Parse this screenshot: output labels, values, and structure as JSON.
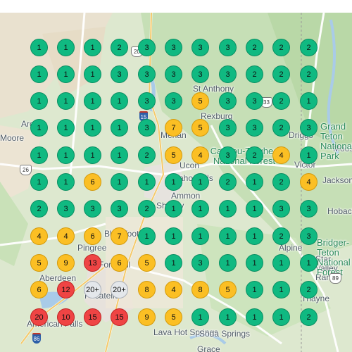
{
  "map": {
    "colors": {
      "green": "#10b981",
      "yellow": "#fbbf24",
      "red": "#ef4444",
      "gray": "#e4e7eb"
    },
    "place_labels": [
      "St Anthony",
      "Rexburg",
      "Menan",
      "Ucon",
      "Ammon",
      "Shelley",
      "Blackfoot",
      "Pingree",
      "Aberdeen",
      "American Falls",
      "Pocatello",
      "Lava Hot Springs",
      "Soda Springs",
      "Grace",
      "Driggs",
      "Victor",
      "Jackson",
      "Alpine",
      "Star Valley Ranch",
      "Thayne",
      "Moose",
      "Hoback",
      "Fort Hall",
      "Idaho Falls",
      "Arco",
      "Moore"
    ],
    "area_labels": [
      "Caribou-Targhee National Forest",
      "Grand Teton National Park",
      "Bridger-Teton National Forest"
    ],
    "route_shields": [
      "15",
      "26",
      "86",
      "20",
      "33",
      "89"
    ],
    "clusters": [
      [
        "1",
        "1",
        "1",
        "2",
        "3",
        "3",
        "3",
        "3",
        "2",
        "2",
        "2"
      ],
      [
        "1",
        "1",
        "1",
        "3",
        "3",
        "3",
        "3",
        "3",
        "2",
        "2",
        "2"
      ],
      [
        "1",
        "1",
        "1",
        "1",
        "3",
        "3",
        "5",
        "3",
        "3",
        "2",
        "1"
      ],
      [
        "1",
        "1",
        "1",
        "1",
        "3",
        "7",
        "5",
        "3",
        "3",
        "2",
        "3"
      ],
      [
        "1",
        "1",
        "1",
        "1",
        "2",
        "5",
        "4",
        "3",
        "2",
        "4",
        "1"
      ],
      [
        "1",
        "1",
        "6",
        "1",
        "1",
        "1",
        "1",
        "2",
        "1",
        "2",
        "4"
      ],
      [
        "2",
        "3",
        "3",
        "3",
        "2",
        "1",
        "1",
        "1",
        "1",
        "3",
        "3"
      ],
      [
        "4",
        "4",
        "6",
        "7",
        "1",
        "1",
        "1",
        "1",
        "1",
        "2",
        "3"
      ],
      [
        "5",
        "9",
        "13",
        "6",
        "5",
        "1",
        "3",
        "1",
        "1",
        "1",
        "1"
      ],
      [
        "6",
        "12",
        "20+",
        "20+",
        "8",
        "4",
        "8",
        "5",
        "1",
        "1",
        "2"
      ],
      [
        "20",
        "10",
        "15",
        "15",
        "9",
        "5",
        "1",
        "1",
        "1",
        "1",
        "2"
      ]
    ]
  }
}
